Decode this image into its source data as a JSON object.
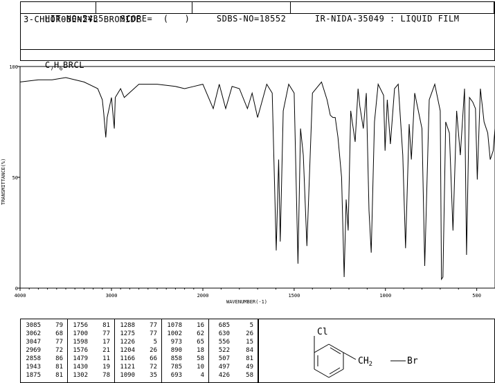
{
  "header": {
    "hit_no": "HIT-NO=5435",
    "score": "SCORE=  (   )",
    "sdbs_no": "SDBS-NO=18552",
    "ir_nida": "IR-NIDA-35049 : LIQUID FILM"
  },
  "compound": {
    "name": "3-CHLOROBENZYL BROMIDE",
    "formula_c": "C",
    "formula_c_sub": "7",
    "formula_h": "H",
    "formula_h_sub": "6",
    "formula_rest": "BRCL"
  },
  "structure": {
    "cl_label": "Cl",
    "ch2_label": "CH",
    "ch2_sub": "2",
    "br_label": "Br"
  },
  "chart_data": {
    "type": "line",
    "xlabel": "WAVENUMBER(-1)",
    "ylabel": "TRANSMITTANCE(%)",
    "x_ticks": [
      "4000",
      "3000",
      "2000",
      "1500",
      "1000",
      "500"
    ],
    "y_ticks": [
      "100",
      "50",
      "0"
    ],
    "xlim": [
      4000,
      400
    ],
    "ylim": [
      0,
      100
    ],
    "x_scale": "piecewise linear: 4000-2000 compressed, 2000-400 expanded",
    "grid": false,
    "series": [
      {
        "x": [
          4000,
          3800,
          3650,
          3500,
          3300,
          3150,
          3100,
          3085,
          3062,
          3047,
          3000,
          2969,
          2958,
          2900,
          2860,
          2700,
          2500,
          2300,
          2200,
          2100,
          2000,
          1943,
          1910,
          1875,
          1840,
          1800,
          1756,
          1730,
          1700,
          1650,
          1620,
          1598,
          1585,
          1576,
          1560,
          1530,
          1500,
          1479,
          1465,
          1450,
          1430,
          1400,
          1350,
          1320,
          1302,
          1288,
          1275,
          1260,
          1240,
          1226,
          1215,
          1204,
          1190,
          1180,
          1166,
          1150,
          1140,
          1121,
          1105,
          1090,
          1078,
          1060,
          1040,
          1010,
          1002,
          990,
          973,
          950,
          930,
          905,
          890,
          870,
          858,
          840,
          800,
          785,
          760,
          730,
          700,
          693,
          685,
          670,
          650,
          630,
          610,
          590,
          567,
          556,
          540,
          522,
          507,
          497,
          480,
          460,
          440,
          426,
          410,
          400
        ],
        "y": [
          93,
          94,
          94,
          95,
          93,
          90,
          85,
          79,
          68,
          77,
          86,
          72,
          86,
          90,
          86,
          92,
          92,
          91,
          90,
          91,
          92,
          81,
          92,
          81,
          91,
          90,
          81,
          88,
          77,
          92,
          88,
          17,
          58,
          21,
          80,
          92,
          88,
          11,
          72,
          60,
          19,
          88,
          93,
          85,
          78,
          77,
          77,
          68,
          50,
          5,
          40,
          26,
          80,
          74,
          66,
          90,
          82,
          72,
          88,
          35,
          16,
          75,
          92,
          87,
          62,
          85,
          65,
          90,
          92,
          60,
          18,
          74,
          58,
          88,
          72,
          10,
          85,
          92,
          80,
          4,
          5,
          75,
          70,
          26,
          80,
          60,
          90,
          15,
          86,
          84,
          81,
          49,
          90,
          75,
          70,
          58,
          62,
          72
        ]
      }
    ],
    "peak_table": [
      [
        [
          "3085",
          "79"
        ],
        [
          "3062",
          "68"
        ],
        [
          "3047",
          "77"
        ],
        [
          "2969",
          "72"
        ],
        [
          "2858",
          "86"
        ],
        [
          "1943",
          "81"
        ],
        [
          "1875",
          "81"
        ]
      ],
      [
        [
          "1756",
          "81"
        ],
        [
          "1700",
          "77"
        ],
        [
          "1598",
          "17"
        ],
        [
          "1576",
          "21"
        ],
        [
          "1479",
          "11"
        ],
        [
          "1430",
          "19"
        ],
        [
          "1302",
          "78"
        ]
      ],
      [
        [
          "1288",
          "77"
        ],
        [
          "1275",
          "77"
        ],
        [
          "1226",
          "5"
        ],
        [
          "1204",
          "26"
        ],
        [
          "1166",
          "66"
        ],
        [
          "1121",
          "72"
        ],
        [
          "1090",
          "35"
        ]
      ],
      [
        [
          "1078",
          "16"
        ],
        [
          "1002",
          "62"
        ],
        [
          "973",
          "65"
        ],
        [
          "890",
          "18"
        ],
        [
          "858",
          "58"
        ],
        [
          "785",
          "10"
        ],
        [
          "693",
          "4"
        ]
      ],
      [
        [
          "685",
          "5"
        ],
        [
          "630",
          "26"
        ],
        [
          "556",
          "15"
        ],
        [
          "522",
          "84"
        ],
        [
          "507",
          "81"
        ],
        [
          "497",
          "49"
        ],
        [
          "426",
          "58"
        ]
      ]
    ]
  }
}
